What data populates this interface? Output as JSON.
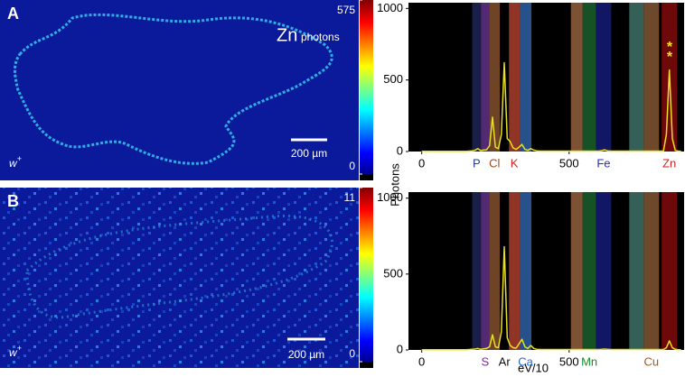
{
  "chart_data": [
    {
      "type": "heatmap",
      "title": "A",
      "label": "Zn",
      "sublabel": "photons",
      "scale_text": "200 µm",
      "genotype": "w",
      "genotype_sup": "+",
      "colorbar": {
        "lim": [
          0,
          575
        ],
        "ticks": [
          0,
          575
        ]
      }
    },
    {
      "type": "line",
      "ylabel": "Photons",
      "xlim": [
        -45,
        890
      ],
      "xticks": [
        0,
        500
      ],
      "ylim": [
        0,
        1040
      ],
      "yticks": [
        0,
        500,
        1000
      ],
      "bands": [
        {
          "range": [
            171,
            201
          ],
          "color": "#1c2250",
          "label": "P",
          "label_color": "#1f3f9a"
        },
        {
          "range": [
            201,
            229
          ],
          "color": "#5a2f80"
        },
        {
          "range": [
            229,
            265
          ],
          "color": "#7a4a2a",
          "label": "Cl",
          "label_color": "#9a4a1a"
        },
        {
          "range": [
            296,
            332
          ],
          "color": "#a03a2a",
          "label": "K",
          "label_color": "#d02020"
        },
        {
          "range": [
            332,
            372
          ],
          "color": "#2a5a9a"
        },
        {
          "range": [
            506,
            546
          ],
          "color": "#8a5a3a"
        },
        {
          "range": [
            546,
            591
          ],
          "color": "#1a5a2a"
        },
        {
          "range": [
            591,
            643
          ],
          "color": "#141a70",
          "label": "Fe",
          "label_color": "#2030c0"
        },
        {
          "range": [
            704,
            753
          ],
          "color": "#3a6a60"
        },
        {
          "range": [
            753,
            805
          ],
          "color": "#7a5030"
        },
        {
          "range": [
            814,
            866
          ],
          "color": "#7a0a0a",
          "label": "Zn",
          "label_color": "#d02020"
        }
      ],
      "annotations": [
        "*",
        "*"
      ],
      "x": [
        0,
        10,
        20,
        30,
        40,
        50,
        60,
        70,
        80,
        90,
        100,
        110,
        120,
        130,
        140,
        150,
        160,
        170,
        180,
        190,
        200,
        210,
        220,
        230,
        240,
        250,
        260,
        270,
        280,
        290,
        300,
        310,
        320,
        330,
        340,
        350,
        360,
        370,
        380,
        390,
        400,
        410,
        420,
        430,
        440,
        450,
        460,
        470,
        480,
        490,
        500,
        510,
        520,
        530,
        540,
        550,
        560,
        570,
        580,
        590,
        600,
        610,
        620,
        630,
        640,
        650,
        660,
        670,
        680,
        690,
        700,
        710,
        720,
        730,
        740,
        750,
        760,
        770,
        780,
        790,
        800,
        810,
        820,
        830,
        840,
        850,
        860,
        870,
        880
      ],
      "series": [
        {
          "name": "A",
          "color": "#e8e020",
          "values": [
            2,
            2,
            2,
            2,
            2,
            2,
            2,
            2,
            2,
            2,
            2,
            2,
            2,
            2,
            2,
            2,
            3,
            5,
            8,
            20,
            6,
            10,
            12,
            40,
            240,
            30,
            20,
            120,
            620,
            90,
            70,
            25,
            15,
            30,
            50,
            15,
            8,
            20,
            10,
            5,
            3,
            3,
            3,
            3,
            3,
            3,
            3,
            3,
            3,
            3,
            3,
            3,
            3,
            3,
            3,
            3,
            3,
            3,
            3,
            3,
            3,
            6,
            12,
            5,
            3,
            3,
            3,
            3,
            3,
            3,
            3,
            3,
            3,
            3,
            3,
            3,
            3,
            3,
            3,
            3,
            3,
            3,
            3,
            120,
            570,
            90,
            8,
            3,
            2
          ]
        }
      ]
    },
    {
      "type": "heatmap",
      "title": "B",
      "scale_text": "200 µm",
      "genotype": "w",
      "genotype_sup": "+",
      "colorbar": {
        "lim": [
          0,
          11
        ],
        "ticks": [
          0,
          11
        ]
      }
    },
    {
      "type": "line",
      "xlabel": "eV/10",
      "xlim": [
        -45,
        890
      ],
      "xticks": [
        0,
        500
      ],
      "ylim": [
        0,
        1040
      ],
      "yticks": [
        0,
        500,
        1000
      ],
      "bands": [
        {
          "range": [
            171,
            201
          ],
          "color": "#1c2250"
        },
        {
          "range": [
            201,
            229
          ],
          "color": "#5a2f80",
          "label": "S",
          "label_color": "#7a2a9a"
        },
        {
          "range": [
            229,
            265
          ],
          "color": "#7a4a2a"
        },
        {
          "range": [
            265,
            296
          ],
          "color": "#000000",
          "label": "Ar",
          "label_color": "#111111"
        },
        {
          "range": [
            296,
            332
          ],
          "color": "#a03a2a"
        },
        {
          "range": [
            332,
            372
          ],
          "color": "#2a5a9a",
          "label": "Ca",
          "label_color": "#2a6ad0"
        },
        {
          "range": [
            506,
            546
          ],
          "color": "#8a5a3a"
        },
        {
          "range": [
            546,
            591
          ],
          "color": "#1a5a2a",
          "label": "Mn",
          "label_color": "#1a8a2a"
        },
        {
          "range": [
            591,
            643
          ],
          "color": "#141a70"
        },
        {
          "range": [
            704,
            753
          ],
          "color": "#3a6a60"
        },
        {
          "range": [
            753,
            805
          ],
          "color": "#7a5030",
          "label": "Cu",
          "label_color": "#a05a20"
        },
        {
          "range": [
            814,
            866
          ],
          "color": "#7a0a0a"
        }
      ],
      "x": [
        0,
        10,
        20,
        30,
        40,
        50,
        60,
        70,
        80,
        90,
        100,
        110,
        120,
        130,
        140,
        150,
        160,
        170,
        180,
        190,
        200,
        210,
        220,
        230,
        240,
        250,
        260,
        270,
        280,
        290,
        300,
        310,
        320,
        330,
        340,
        350,
        360,
        370,
        380,
        390,
        400,
        410,
        420,
        430,
        440,
        450,
        460,
        470,
        480,
        490,
        500,
        510,
        520,
        530,
        540,
        550,
        560,
        570,
        580,
        590,
        600,
        610,
        620,
        630,
        640,
        650,
        660,
        670,
        680,
        690,
        700,
        710,
        720,
        730,
        740,
        750,
        760,
        770,
        780,
        790,
        800,
        810,
        820,
        830,
        840,
        850,
        860,
        870,
        880
      ],
      "series": [
        {
          "name": "B",
          "color": "#e8e020",
          "values": [
            2,
            2,
            2,
            2,
            2,
            2,
            2,
            2,
            2,
            2,
            2,
            2,
            2,
            2,
            2,
            2,
            3,
            5,
            6,
            10,
            4,
            8,
            10,
            20,
            100,
            20,
            15,
            120,
            680,
            80,
            30,
            15,
            12,
            40,
            70,
            20,
            10,
            30,
            10,
            5,
            3,
            3,
            3,
            3,
            3,
            3,
            3,
            3,
            3,
            3,
            3,
            3,
            3,
            3,
            3,
            3,
            3,
            3,
            3,
            3,
            3,
            4,
            6,
            4,
            3,
            3,
            3,
            3,
            3,
            3,
            3,
            3,
            3,
            3,
            3,
            3,
            3,
            3,
            3,
            3,
            3,
            3,
            3,
            15,
            60,
            15,
            4,
            2,
            2
          ]
        }
      ]
    }
  ]
}
